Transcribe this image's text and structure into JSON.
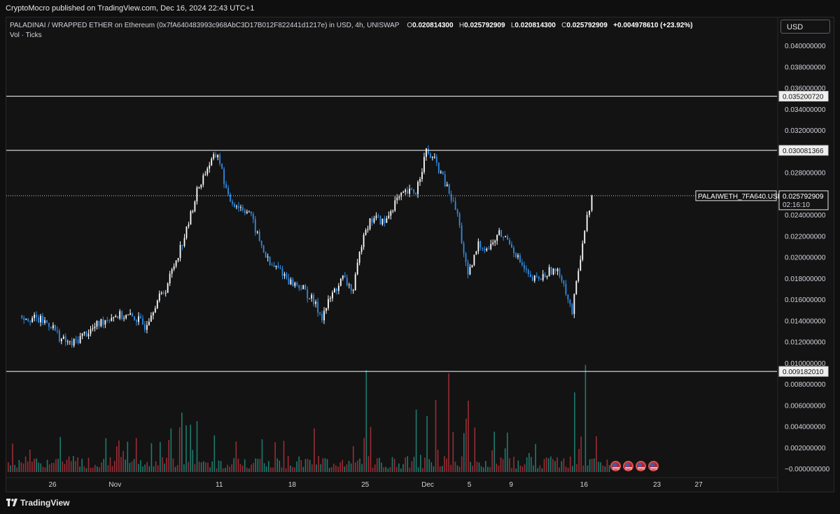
{
  "header": {
    "published_text": "CryptoMocro published on TradingView.com, Dec 16, 2024 22:43 UTC+1"
  },
  "legend": {
    "symbol": "PALADINAI / WRAPPED ETHER on Ethereum (0x7fA640483993c968AbC3D17B012F822441d1217e) in USD, 4h, UNISWAP",
    "o_label": "O",
    "o_value": "0.020814300",
    "h_label": "H",
    "h_value": "0.025792909",
    "l_label": "L",
    "l_value": "0.020814300",
    "c_label": "C",
    "c_value": "0.025792909",
    "change": "+0.004978610 (+23.92%)",
    "volume_label": "Vol · Ticks"
  },
  "currency_button": "USD",
  "footer": {
    "brand": "TradingView"
  },
  "colors": {
    "up": "#ffffff",
    "down": "#2e8be6",
    "vol_up": "#1f7a6f",
    "vol_down": "#9b2d35",
    "grid": "#1f1f1f",
    "axis_text": "#d1d4dc",
    "background": "#131313"
  },
  "chart_data": {
    "type": "candlestick",
    "symbol_label": "PALAIWETH_7FA640.USD",
    "timer": "02:16:10",
    "last_price": 0.025792909,
    "y_ticks": [
      "0.040000000",
      "0.038000000",
      "0.036000000",
      "0.034000000",
      "0.032000000",
      "0.030000000",
      "0.028000000",
      "0.026000000",
      "0.024000000",
      "0.022000000",
      "0.020000000",
      "0.018000000",
      "0.016000000",
      "0.014000000",
      "0.012000000",
      "0.010000000",
      "0.008000000",
      "0.006000000",
      "0.004000000",
      "0.002000000",
      "−0.000000000"
    ],
    "x_ticks": [
      "26",
      "Nov",
      "11",
      "18",
      "25",
      "Dec",
      "5",
      "9",
      "16",
      "23",
      "27"
    ],
    "horizontal_levels": [
      {
        "value": 0.0352,
        "label": "0.035200720"
      },
      {
        "value": 0.030081366,
        "label": "0.030081366"
      },
      {
        "value": 0.00918201,
        "label": "0.009182010"
      }
    ],
    "price_path": [
      {
        "date": "Oct 23",
        "close": 0.0145
      },
      {
        "date": "Oct 25",
        "close": 0.014
      },
      {
        "date": "Oct 26",
        "close": 0.0136
      },
      {
        "date": "Oct 27",
        "close": 0.0122
      },
      {
        "date": "Oct 28",
        "close": 0.0117
      },
      {
        "date": "Oct 29",
        "close": 0.0126
      },
      {
        "date": "Oct 30",
        "close": 0.0132
      },
      {
        "date": "Oct 31",
        "close": 0.014
      },
      {
        "date": "Nov 1",
        "close": 0.0145
      },
      {
        "date": "Nov 3",
        "close": 0.0143
      },
      {
        "date": "Nov 4",
        "close": 0.0135
      },
      {
        "date": "Nov 5",
        "close": 0.0156
      },
      {
        "date": "Nov 6",
        "close": 0.017
      },
      {
        "date": "Nov 7",
        "close": 0.0198
      },
      {
        "date": "Nov 8",
        "close": 0.0225
      },
      {
        "date": "Nov 9",
        "close": 0.0262
      },
      {
        "date": "Nov 10",
        "close": 0.0285
      },
      {
        "date": "Nov 11",
        "close": 0.0298
      },
      {
        "date": "Nov 12",
        "close": 0.0255
      },
      {
        "date": "Nov 13",
        "close": 0.0248
      },
      {
        "date": "Nov 14",
        "close": 0.0243
      },
      {
        "date": "Nov 15",
        "close": 0.0215
      },
      {
        "date": "Nov 16",
        "close": 0.0192
      },
      {
        "date": "Nov 17",
        "close": 0.0188
      },
      {
        "date": "Nov 18",
        "close": 0.0176
      },
      {
        "date": "Nov 19",
        "close": 0.0172
      },
      {
        "date": "Nov 20",
        "close": 0.016
      },
      {
        "date": "Nov 21",
        "close": 0.0144
      },
      {
        "date": "Nov 22",
        "close": 0.0165
      },
      {
        "date": "Nov 23",
        "close": 0.018
      },
      {
        "date": "Nov 24",
        "close": 0.0168
      },
      {
        "date": "Nov 25",
        "close": 0.0225
      },
      {
        "date": "Nov 26",
        "close": 0.0238
      },
      {
        "date": "Nov 27",
        "close": 0.0232
      },
      {
        "date": "Nov 28",
        "close": 0.0252
      },
      {
        "date": "Nov 29",
        "close": 0.026
      },
      {
        "date": "Nov 30",
        "close": 0.0262
      },
      {
        "date": "Dec 1",
        "close": 0.03
      },
      {
        "date": "Dec 2",
        "close": 0.0288
      },
      {
        "date": "Dec 3",
        "close": 0.0265
      },
      {
        "date": "Dec 4",
        "close": 0.024
      },
      {
        "date": "Dec 5",
        "close": 0.018
      },
      {
        "date": "Dec 6",
        "close": 0.0212
      },
      {
        "date": "Dec 7",
        "close": 0.0208
      },
      {
        "date": "Dec 8",
        "close": 0.0222
      },
      {
        "date": "Dec 9",
        "close": 0.0215
      },
      {
        "date": "Dec 10",
        "close": 0.0195
      },
      {
        "date": "Dec 11",
        "close": 0.0178
      },
      {
        "date": "Dec 12",
        "close": 0.018
      },
      {
        "date": "Dec 13",
        "close": 0.0188
      },
      {
        "date": "Dec 14",
        "close": 0.0182
      },
      {
        "date": "Dec 15",
        "close": 0.0147
      },
      {
        "date": "Dec 16",
        "close": 0.0215
      },
      {
        "date": "Dec 16 22:00",
        "close": 0.025792909
      }
    ],
    "volume_peaks": [
      {
        "date": "Nov 25",
        "value": 0.0093
      },
      {
        "date": "Dec 3",
        "value": 0.009
      },
      {
        "date": "Dec 15",
        "value": 0.0072
      },
      {
        "date": "Dec 16",
        "value": 0.0098
      }
    ]
  }
}
